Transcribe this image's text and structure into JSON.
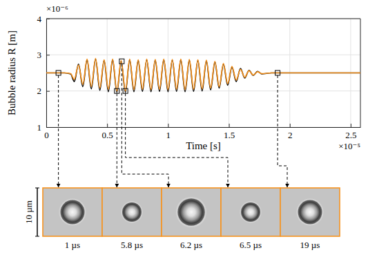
{
  "chart_data": {
    "type": "line",
    "x_label": "Time [s]",
    "y_label": "Bubble radius R [m]",
    "x_multiplier": "×10⁻⁵",
    "y_multiplier": "×10⁻⁶",
    "xlim": [
      0,
      2.58
    ],
    "xticks": [
      0,
      0.5,
      1,
      1.5,
      2,
      2.5
    ],
    "ylim": [
      1,
      4
    ],
    "yticks": [
      1,
      2,
      3,
      4
    ],
    "grid": true,
    "x": [
      0,
      0.05,
      0.1,
      0.15,
      0.2,
      0.23,
      0.265,
      0.3,
      0.335,
      0.37,
      0.405,
      0.44,
      0.475,
      0.51,
      0.545,
      0.58,
      0.615,
      0.65,
      0.685,
      0.72,
      0.755,
      0.79,
      0.825,
      0.86,
      0.895,
      0.93,
      0.965,
      1.0,
      1.035,
      1.07,
      1.105,
      1.14,
      1.175,
      1.21,
      1.245,
      1.28,
      1.315,
      1.35,
      1.385,
      1.42,
      1.455,
      1.49,
      1.525,
      1.56,
      1.595,
      1.63,
      1.665,
      1.7,
      1.735,
      1.77,
      1.85,
      1.9,
      2.0,
      2.1,
      2.2,
      2.3,
      2.4,
      2.5,
      2.58
    ],
    "series": [
      {
        "color": "#000000",
        "line_style": "solid",
        "values": [
          2.5,
          2.5,
          2.5,
          2.5,
          2.47,
          2.26,
          2.74,
          2.12,
          2.86,
          2.06,
          2.88,
          2.02,
          2.84,
          1.98,
          2.86,
          1.96,
          2.82,
          1.96,
          2.86,
          1.98,
          2.84,
          1.99,
          2.86,
          1.98,
          2.85,
          1.99,
          2.86,
          1.98,
          2.85,
          1.99,
          2.86,
          1.98,
          2.85,
          1.99,
          2.84,
          2.0,
          2.83,
          2.03,
          2.8,
          2.08,
          2.74,
          2.16,
          2.66,
          2.26,
          2.62,
          2.36,
          2.57,
          2.43,
          2.54,
          2.47,
          2.5,
          2.5,
          2.5,
          2.5,
          2.5,
          2.5,
          2.5,
          2.5,
          2.5
        ]
      },
      {
        "color": "#f7931e",
        "line_style": "solid",
        "values": [
          2.5,
          2.5,
          2.5,
          2.5,
          2.48,
          2.32,
          2.72,
          2.18,
          2.88,
          2.12,
          2.9,
          2.08,
          2.86,
          2.05,
          2.88,
          2.0,
          2.84,
          2.0,
          2.88,
          2.04,
          2.86,
          2.05,
          2.88,
          2.04,
          2.87,
          2.05,
          2.88,
          2.04,
          2.87,
          2.05,
          2.88,
          2.04,
          2.87,
          2.05,
          2.86,
          2.06,
          2.85,
          2.08,
          2.82,
          2.12,
          2.76,
          2.2,
          2.68,
          2.3,
          2.6,
          2.38,
          2.56,
          2.44,
          2.53,
          2.48,
          2.5,
          2.5,
          2.5,
          2.5,
          2.5,
          2.5,
          2.5,
          2.5,
          2.5
        ]
      }
    ],
    "snapshots": {
      "type": "scatter",
      "marker": "square",
      "color": "#f7931e",
      "x": [
        0.1,
        0.58,
        0.62,
        0.65,
        1.9
      ],
      "values": [
        2.5,
        2.0,
        2.82,
        2.0,
        2.5
      ],
      "labels": [
        "1 µs",
        "5.8 µs",
        "6.2 µs",
        "6.5 µs",
        "19 µs"
      ]
    },
    "scale_bar": {
      "value": 10,
      "label": "10 µm"
    }
  }
}
